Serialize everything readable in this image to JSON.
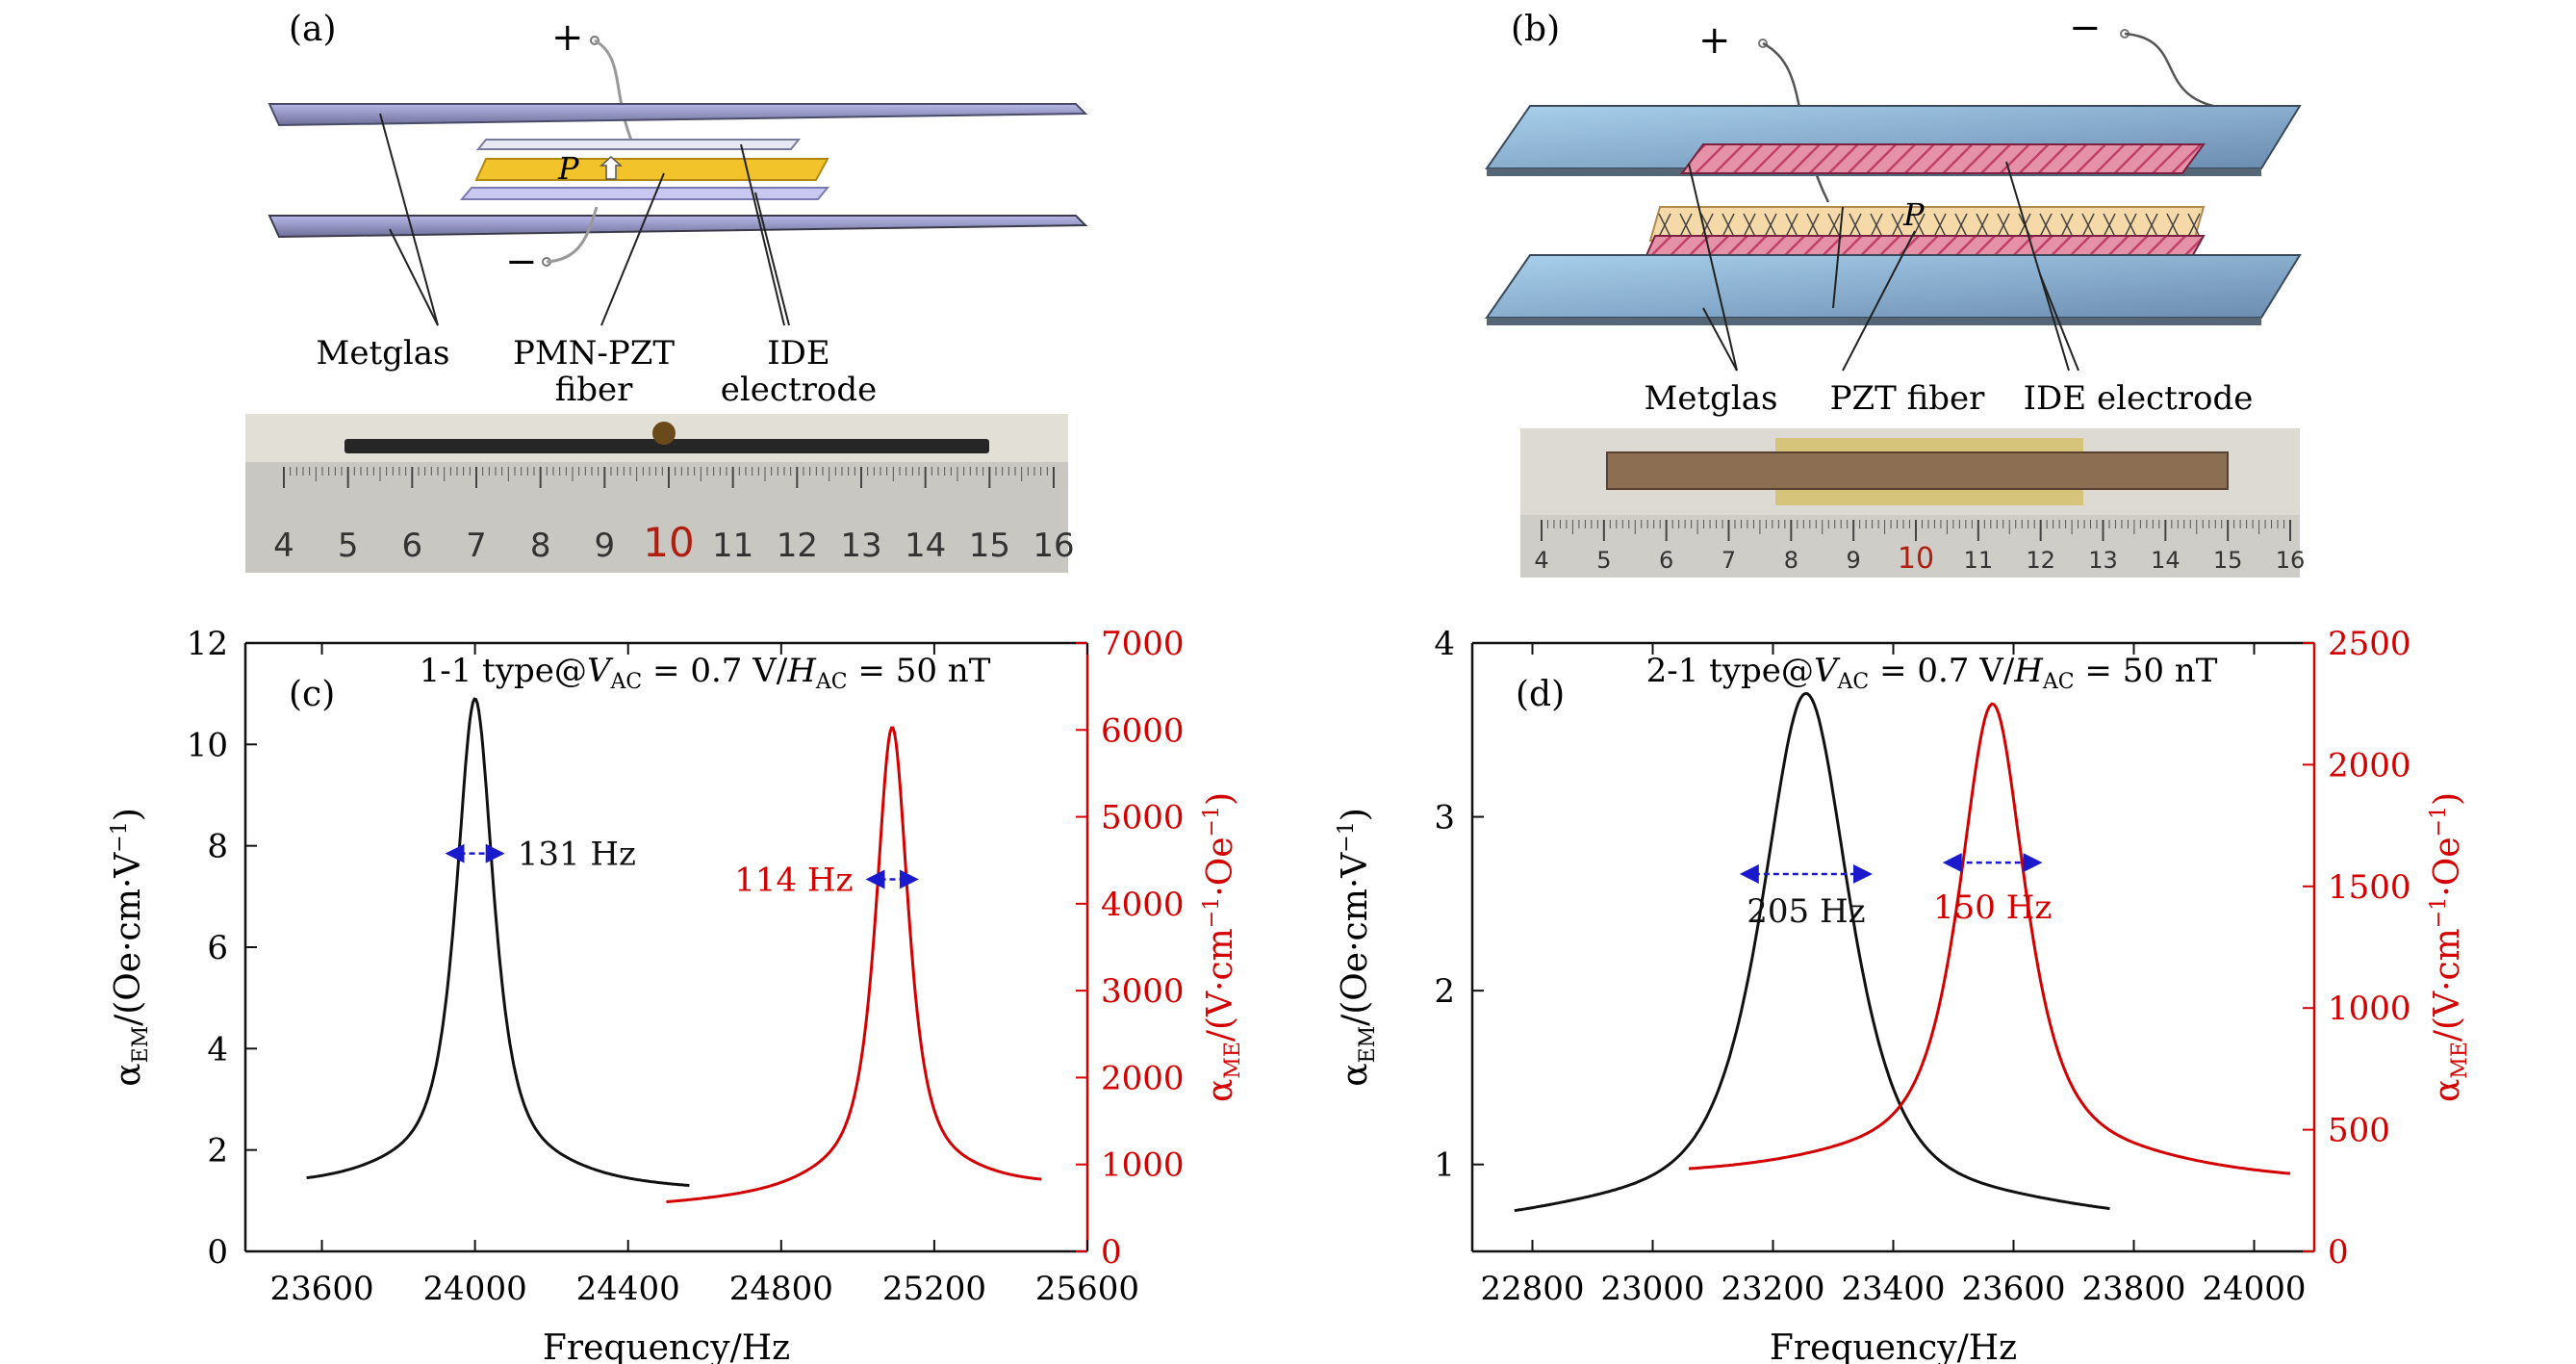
{
  "panel_a": {
    "letter": "(a)",
    "plus": "+",
    "minus": "−",
    "p_label": "P",
    "labels": {
      "metglas": "Metglas",
      "fiber_line1": "PMN-PZT",
      "fiber_line2": "fiber",
      "electrode_line1": "IDE",
      "electrode_line2": "electrode"
    },
    "ruler_numbers": [
      "4",
      "5",
      "6",
      "7",
      "8",
      "9",
      "10",
      "11",
      "12",
      "13",
      "14",
      "15",
      "16"
    ],
    "ruler_highlight": "10"
  },
  "panel_b": {
    "letter": "(b)",
    "plus": "+",
    "minus": "−",
    "p_label": "P",
    "labels": {
      "metglas": "Metglas",
      "fiber": "PZT fiber",
      "electrode": "IDE electrode"
    },
    "ruler_numbers": [
      "4",
      "5",
      "6",
      "7",
      "8",
      "9",
      "10",
      "11",
      "12",
      "13",
      "14",
      "15",
      "16"
    ],
    "ruler_highlight": "10"
  },
  "colors": {
    "black_series": "#111111",
    "red_series": "#d40000",
    "arrow": "#1a1acc"
  },
  "chart_data": [
    {
      "panel": "(c)",
      "type": "line",
      "title": "1-1 type@V_AC = 0.7 V/H_AC = 50 nT",
      "title_parts": {
        "prefix": "1-1 type@",
        "v": "V",
        "v_sub": "AC",
        "v_val": " = 0.7 V/",
        "h": "H",
        "h_sub": "AC",
        "h_val": " = 50 nT"
      },
      "xlabel": "Frequency/Hz",
      "ylabel_left": {
        "base": "α",
        "sub": "EM",
        "rest": "/(Oe·cm·V",
        "sup": "−1",
        "end": ")"
      },
      "ylabel_right": {
        "base": "α",
        "sub": "ME",
        "rest": "/(V·cm",
        "sup1": "−1",
        "mid": "·Oe",
        "sup2": "−1",
        "end": ")"
      },
      "xlim": [
        23400,
        25600
      ],
      "xticks": [
        23600,
        24000,
        24400,
        24800,
        25200,
        25600
      ],
      "ylim_left": [
        0,
        12
      ],
      "yticks_left": [
        0,
        2,
        4,
        6,
        8,
        10,
        12
      ],
      "ylim_right": [
        0,
        7000
      ],
      "yticks_right": [
        0,
        1000,
        2000,
        3000,
        4000,
        5000,
        6000,
        7000
      ],
      "series": [
        {
          "axis": "left",
          "color": "black",
          "peak_x": 24000,
          "peak_y": 10.9,
          "fwhm": 131,
          "fwhm_label": "131 Hz",
          "x_start": 23560,
          "x_end": 24560,
          "y_start": 1.45,
          "y_end": 1.3
        },
        {
          "axis": "right",
          "color": "red",
          "peak_x": 25090,
          "peak_y": 6030,
          "fwhm": 114,
          "fwhm_label": "114 Hz",
          "x_start": 24500,
          "x_end": 25480,
          "y_start": 570,
          "y_end": 830
        }
      ],
      "grid": false
    },
    {
      "panel": "(d)",
      "type": "line",
      "title": "2-1 type@V_AC = 0.7 V/H_AC = 50 nT",
      "title_parts": {
        "prefix": "2-1 type@",
        "v": "V",
        "v_sub": "AC",
        "v_val": " = 0.7 V/",
        "h": "H",
        "h_sub": "AC",
        "h_val": " = 50 nT"
      },
      "xlabel": "Frequency/Hz",
      "ylabel_left": {
        "base": "α",
        "sub": "EM",
        "rest": "/(Oe·cm·V",
        "sup": "−1",
        "end": ")"
      },
      "ylabel_right": {
        "base": "α",
        "sub": "ME",
        "rest": "/(V·cm",
        "sup1": "−1",
        "mid": "·Oe",
        "sup2": "−1",
        "end": ")"
      },
      "xlim": [
        22700,
        24100
      ],
      "xticks": [
        22800,
        23000,
        23200,
        23400,
        23600,
        23800,
        24000
      ],
      "ylim_left": [
        0.5,
        4
      ],
      "yticks_left": [
        1,
        2,
        3,
        4
      ],
      "ylim_right": [
        0,
        2500
      ],
      "yticks_right": [
        0,
        500,
        1000,
        1500,
        2000,
        2500
      ],
      "series": [
        {
          "axis": "left",
          "color": "black",
          "peak_x": 23255,
          "peak_y": 3.71,
          "fwhm": 205,
          "fwhm_label": "205 Hz",
          "x_start": 22770,
          "x_end": 23760,
          "y_start": 0.74,
          "y_end": 0.75
        },
        {
          "axis": "right",
          "color": "red",
          "peak_x": 23565,
          "peak_y": 2250,
          "fwhm": 150,
          "fwhm_label": "150 Hz",
          "x_start": 23060,
          "x_end": 24060,
          "y_start": 340,
          "y_end": 320
        }
      ],
      "grid": false
    }
  ]
}
